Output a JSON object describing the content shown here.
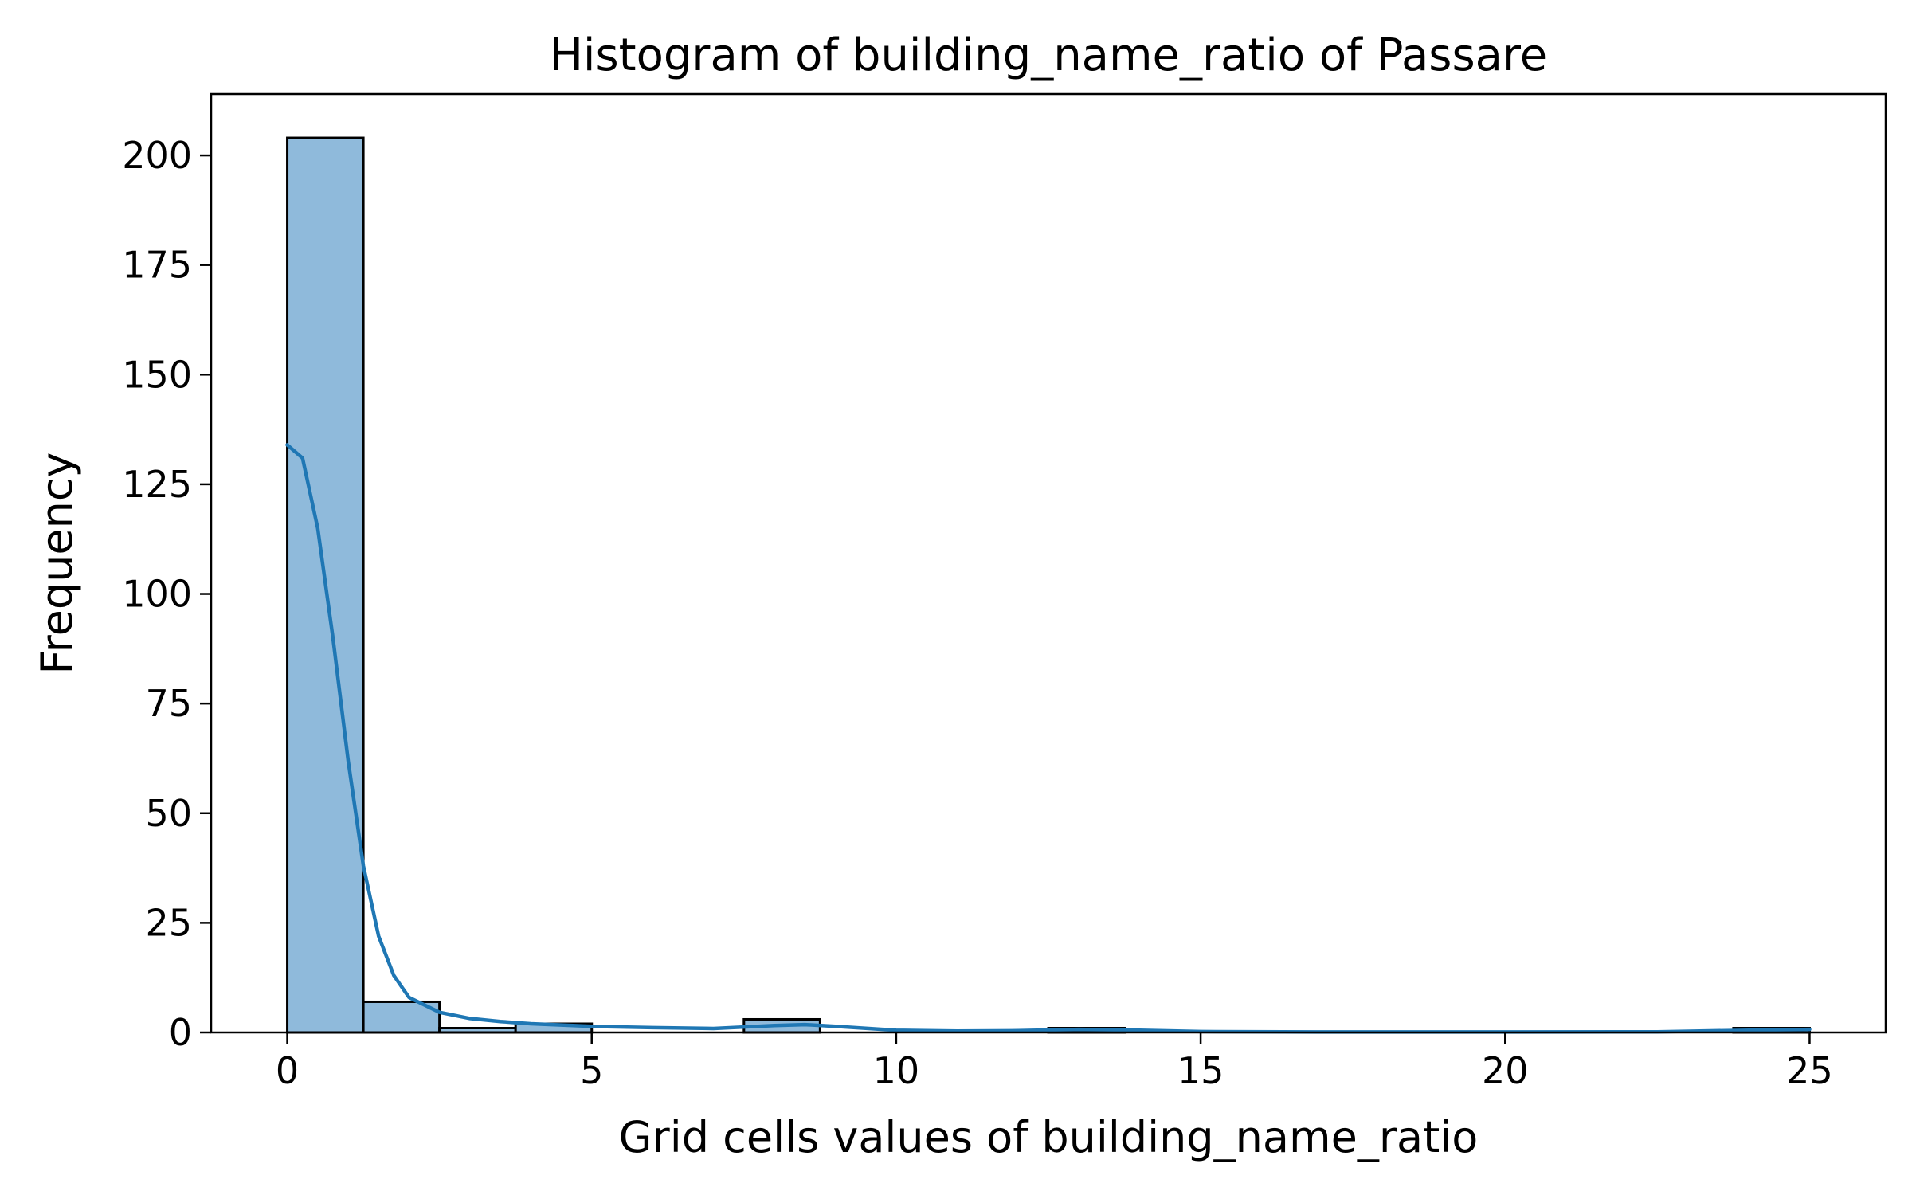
{
  "chart_data": {
    "type": "bar",
    "title": "Histogram of building_name_ratio of Passare",
    "xlabel": "Grid cells values of building_name_ratio",
    "ylabel": "Frequency",
    "xlim": [
      -1.25,
      26.25
    ],
    "ylim": [
      0,
      214
    ],
    "xticks": [
      0,
      5,
      10,
      15,
      20,
      25
    ],
    "yticks": [
      0,
      25,
      50,
      75,
      100,
      125,
      150,
      175,
      200
    ],
    "bins": [
      {
        "x0": 0,
        "x1": 1.25,
        "count": 204
      },
      {
        "x0": 1.25,
        "x1": 2.5,
        "count": 7
      },
      {
        "x0": 2.5,
        "x1": 3.75,
        "count": 1
      },
      {
        "x0": 3.75,
        "x1": 5,
        "count": 2
      },
      {
        "x0": 5,
        "x1": 6.25,
        "count": 0
      },
      {
        "x0": 6.25,
        "x1": 7.5,
        "count": 0
      },
      {
        "x0": 7.5,
        "x1": 8.75,
        "count": 3
      },
      {
        "x0": 8.75,
        "x1": 10,
        "count": 0
      },
      {
        "x0": 10,
        "x1": 11.25,
        "count": 0
      },
      {
        "x0": 11.25,
        "x1": 12.5,
        "count": 0
      },
      {
        "x0": 12.5,
        "x1": 13.75,
        "count": 1
      },
      {
        "x0": 13.75,
        "x1": 15,
        "count": 0
      },
      {
        "x0": 15,
        "x1": 16.25,
        "count": 0
      },
      {
        "x0": 16.25,
        "x1": 17.5,
        "count": 0
      },
      {
        "x0": 17.5,
        "x1": 18.75,
        "count": 0
      },
      {
        "x0": 18.75,
        "x1": 20,
        "count": 0
      },
      {
        "x0": 20,
        "x1": 21.25,
        "count": 0
      },
      {
        "x0": 21.25,
        "x1": 22.5,
        "count": 0
      },
      {
        "x0": 22.5,
        "x1": 23.75,
        "count": 0
      },
      {
        "x0": 23.75,
        "x1": 25,
        "count": 1
      }
    ],
    "kde": {
      "x": [
        0,
        0.25,
        0.5,
        0.75,
        1.0,
        1.25,
        1.5,
        1.75,
        2.0,
        2.5,
        3.0,
        3.5,
        4.0,
        5.0,
        6.0,
        7.0,
        8.0,
        8.5,
        9.0,
        10.0,
        11.0,
        12.0,
        13.0,
        14.0,
        15.0,
        17.0,
        20.0,
        22.5,
        24.0,
        25.0
      ],
      "y": [
        134,
        131,
        115,
        90,
        62,
        38,
        22,
        13,
        8,
        4.6,
        3.2,
        2.5,
        2.0,
        1.4,
        1.1,
        0.9,
        1.6,
        1.8,
        1.4,
        0.5,
        0.3,
        0.4,
        0.7,
        0.5,
        0.2,
        0.1,
        0.1,
        0.15,
        0.5,
        0.7
      ]
    },
    "bar_color": "#8fbadb",
    "line_color": "#1f77b4",
    "grid": false,
    "legend": false
  }
}
